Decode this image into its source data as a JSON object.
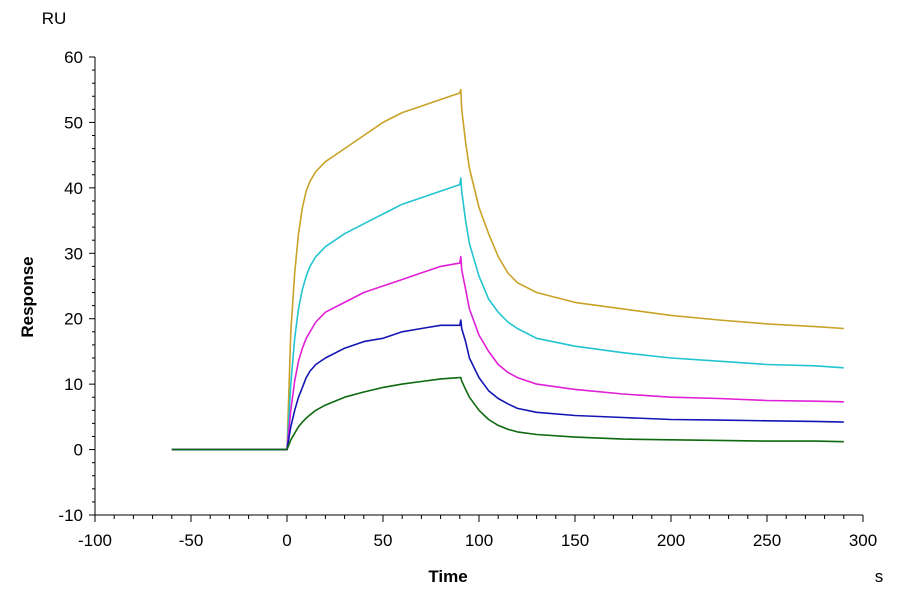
{
  "chart_data": {
    "type": "line",
    "xlabel": "Time",
    "xunit": "s",
    "ylabel": "Response",
    "yunit": "RU",
    "xlim": [
      -100,
      300
    ],
    "ylim": [
      -10,
      60
    ],
    "x_ticks": [
      -100,
      -50,
      0,
      50,
      100,
      150,
      200,
      250,
      300
    ],
    "y_ticks": [
      -10,
      0,
      10,
      20,
      30,
      40,
      50,
      60
    ],
    "grid": false,
    "colors": [
      "#C9A227",
      "#22C4D0",
      "#E01FD6",
      "#1515B5",
      "#0E6A0E"
    ],
    "series": [
      {
        "color": "#C9A227",
        "x": [
          -60,
          0,
          2,
          4,
          6,
          8,
          10,
          12,
          15,
          20,
          30,
          40,
          50,
          60,
          70,
          80,
          90,
          90.5,
          91,
          93,
          95,
          100,
          105,
          110,
          115,
          120,
          130,
          150,
          175,
          200,
          225,
          250,
          275,
          290
        ],
        "y": [
          0,
          0,
          18,
          27,
          33,
          37,
          39.5,
          41,
          42.5,
          44,
          46,
          48,
          50,
          51.5,
          52.5,
          53.5,
          54.5,
          55,
          52,
          47,
          43,
          37,
          33,
          29.5,
          27,
          25.5,
          24,
          22.5,
          21.5,
          20.5,
          19.8,
          19.2,
          18.8,
          18.5
        ]
      },
      {
        "color": "#22C4D0",
        "x": [
          -60,
          0,
          2,
          4,
          6,
          8,
          10,
          12,
          15,
          20,
          30,
          40,
          50,
          60,
          70,
          80,
          90,
          90.5,
          91,
          93,
          95,
          100,
          105,
          110,
          115,
          120,
          130,
          150,
          175,
          200,
          225,
          250,
          275,
          290
        ],
        "y": [
          0,
          0,
          10,
          17,
          21.5,
          24.5,
          26.5,
          28,
          29.5,
          31,
          33,
          34.5,
          36,
          37.5,
          38.5,
          39.5,
          40.5,
          41.5,
          39.5,
          35,
          31.5,
          26.5,
          23,
          21,
          19.5,
          18.5,
          17,
          15.8,
          14.8,
          14,
          13.5,
          13,
          12.8,
          12.5
        ]
      },
      {
        "color": "#E01FD6",
        "x": [
          -60,
          0,
          2,
          4,
          6,
          8,
          10,
          12,
          15,
          20,
          30,
          40,
          50,
          60,
          70,
          80,
          90,
          90.5,
          91,
          93,
          95,
          100,
          105,
          110,
          115,
          120,
          130,
          150,
          175,
          200,
          225,
          250,
          275,
          290
        ],
        "y": [
          0,
          0,
          6,
          10.5,
          13.5,
          15.5,
          17,
          18,
          19.5,
          21,
          22.5,
          24,
          25,
          26,
          27,
          28,
          28.5,
          29.5,
          27.5,
          24.5,
          21.5,
          17.5,
          15,
          13,
          11.8,
          11,
          10,
          9.2,
          8.5,
          8,
          7.8,
          7.5,
          7.4,
          7.3
        ]
      },
      {
        "color": "#1515B5",
        "x": [
          -60,
          0,
          2,
          4,
          6,
          8,
          10,
          12,
          15,
          20,
          30,
          40,
          50,
          60,
          70,
          80,
          90,
          90.5,
          91,
          93,
          95,
          100,
          105,
          110,
          115,
          120,
          130,
          150,
          175,
          200,
          225,
          250,
          275,
          290
        ],
        "y": [
          0,
          0,
          3.5,
          6,
          8,
          9.5,
          11,
          12,
          13,
          14,
          15.5,
          16.5,
          17,
          18,
          18.5,
          19,
          19,
          19.8,
          18.5,
          16.5,
          14,
          11,
          9,
          7.8,
          7,
          6.3,
          5.7,
          5.2,
          4.9,
          4.6,
          4.5,
          4.4,
          4.3,
          4.2
        ]
      },
      {
        "color": "#0E6A0E",
        "x": [
          -60,
          0,
          2,
          4,
          6,
          8,
          10,
          12,
          15,
          20,
          30,
          40,
          50,
          60,
          70,
          80,
          90,
          90.5,
          91,
          93,
          95,
          100,
          105,
          110,
          115,
          120,
          130,
          150,
          175,
          200,
          225,
          250,
          275,
          290
        ],
        "y": [
          0,
          0,
          1.5,
          2.5,
          3.5,
          4.2,
          4.8,
          5.3,
          6,
          6.8,
          8,
          8.8,
          9.5,
          10,
          10.4,
          10.8,
          11,
          11,
          10.5,
          9.2,
          8,
          6,
          4.6,
          3.7,
          3.1,
          2.7,
          2.3,
          1.9,
          1.6,
          1.5,
          1.4,
          1.3,
          1.3,
          1.2
        ]
      }
    ]
  }
}
